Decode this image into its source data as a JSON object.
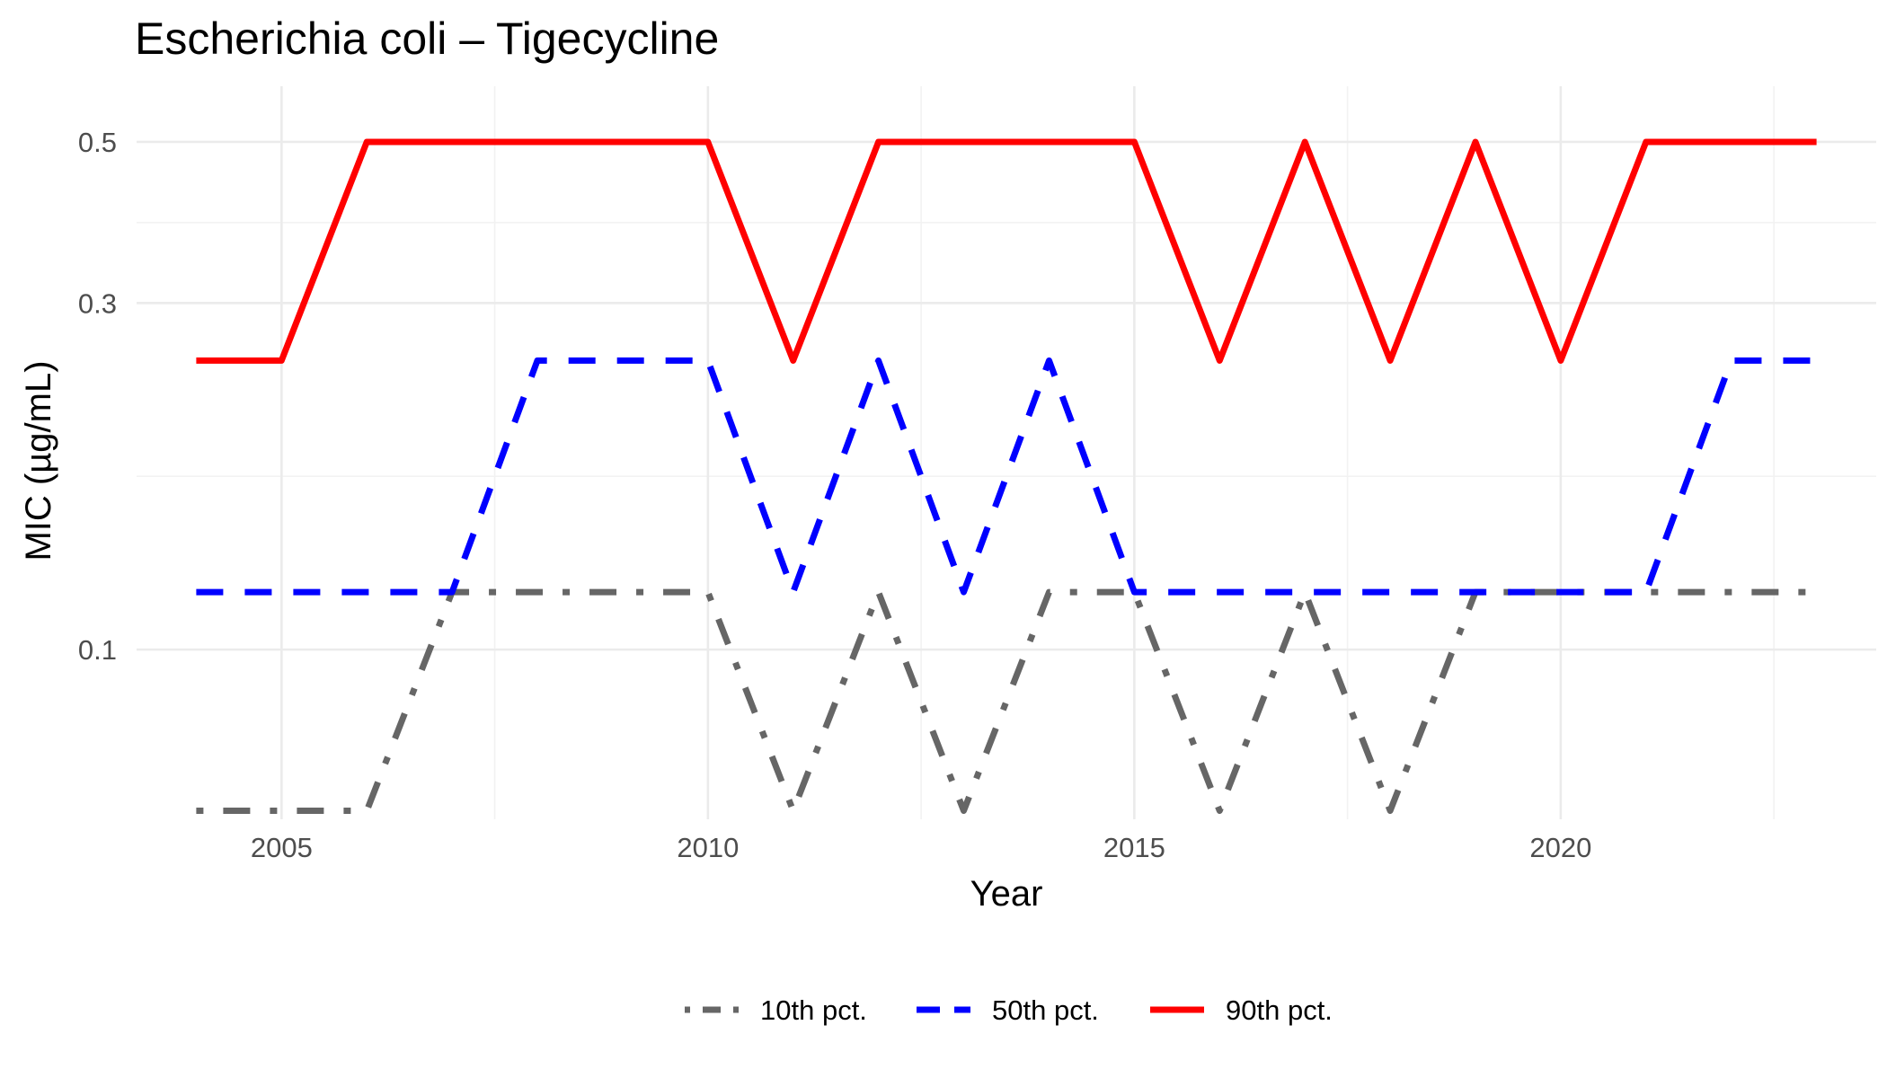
{
  "chart_data": {
    "type": "line",
    "title": "Escherichia coli – Tigecycline",
    "xlabel": "Year",
    "ylabel": "MIC (µg/mL)",
    "x": [
      2004,
      2005,
      2006,
      2007,
      2008,
      2009,
      2010,
      2011,
      2012,
      2013,
      2014,
      2015,
      2016,
      2017,
      2018,
      2019,
      2020,
      2021,
      2022,
      2023
    ],
    "x_ticks": [
      2005,
      2010,
      2015,
      2020
    ],
    "x_tick_labels": [
      "2005",
      "2010",
      "2015",
      "2020"
    ],
    "xlim": [
      2003.3,
      2023.7
    ],
    "y_scale": "log10",
    "y_ticks": [
      0.1,
      0.3,
      0.5
    ],
    "y_tick_labels": [
      "0.1",
      "0.3",
      "0.5"
    ],
    "ylim": [
      0.0584,
      0.5965
    ],
    "grid": true,
    "legend_position": "bottom",
    "series": [
      {
        "name": "10th pct.",
        "color": "#666666",
        "dash": "dotdash",
        "values": [
          0.06,
          0.06,
          0.06,
          0.12,
          0.12,
          0.12,
          0.12,
          0.06,
          0.12,
          0.06,
          0.12,
          0.12,
          0.06,
          0.12,
          0.06,
          0.12,
          0.12,
          0.12,
          0.12,
          0.12
        ]
      },
      {
        "name": "50th pct.",
        "color": "#0000ff",
        "dash": "dashed",
        "values": [
          0.12,
          0.12,
          0.12,
          0.12,
          0.25,
          0.25,
          0.25,
          0.12,
          0.25,
          0.12,
          0.25,
          0.12,
          0.12,
          0.12,
          0.12,
          0.12,
          0.12,
          0.12,
          0.25,
          0.25
        ]
      },
      {
        "name": "90th pct.",
        "color": "#ff0000",
        "dash": "solid",
        "values": [
          0.25,
          0.25,
          0.5,
          0.5,
          0.5,
          0.5,
          0.5,
          0.25,
          0.5,
          0.5,
          0.5,
          0.5,
          0.25,
          0.5,
          0.25,
          0.5,
          0.25,
          0.5,
          0.5,
          0.5
        ]
      }
    ]
  }
}
